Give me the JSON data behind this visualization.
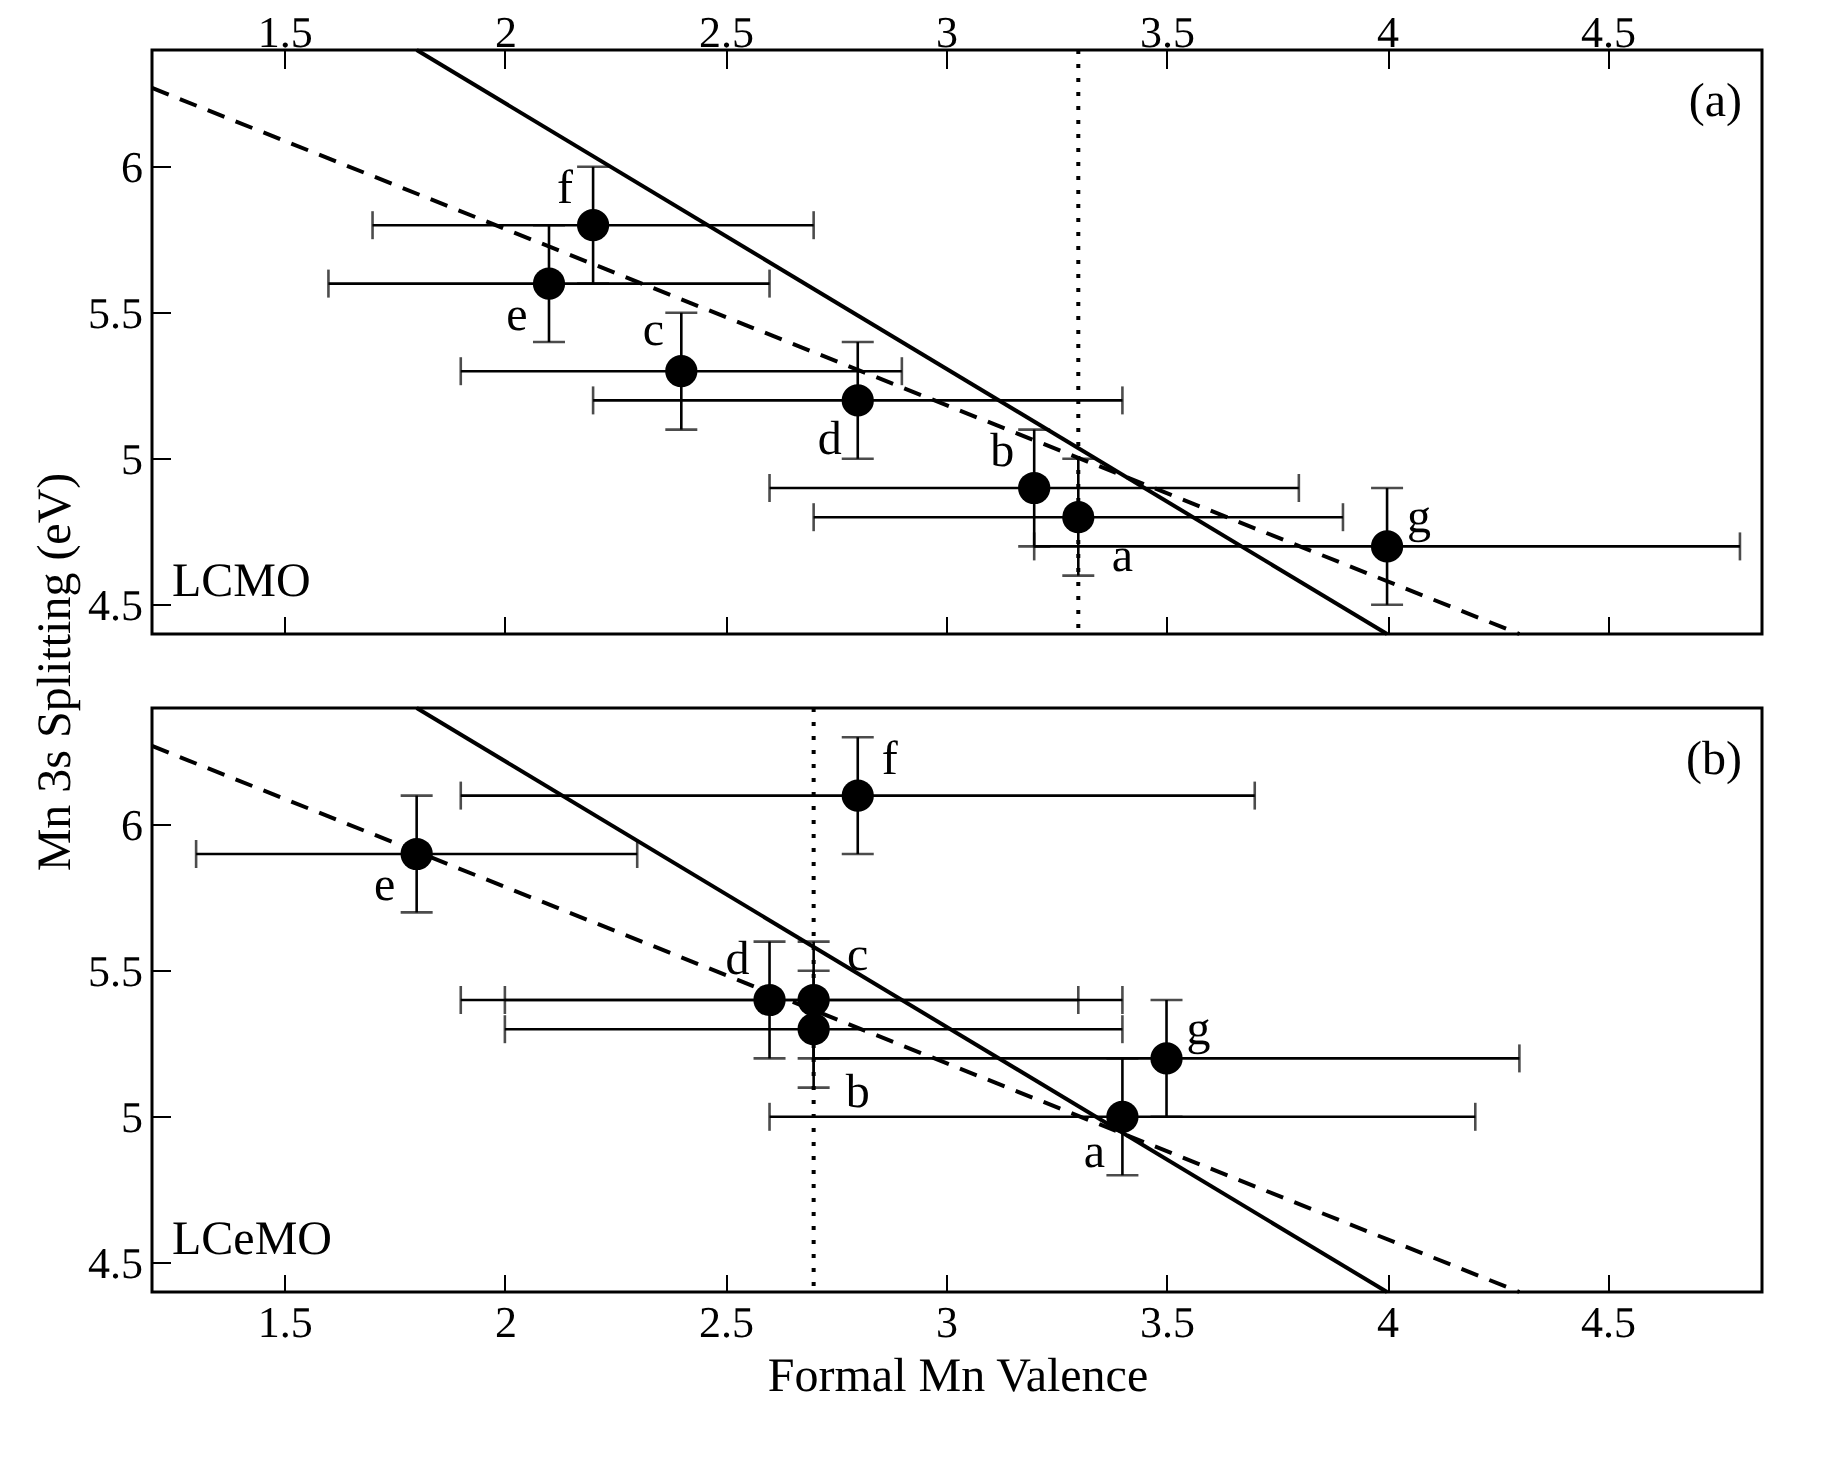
{
  "chart_data": [
    {
      "type": "scatter",
      "ylabel": "Mn 3s Splitting (eV)",
      "xlim": [
        1.2,
        4.85
      ],
      "ylim": [
        4.4,
        6.4
      ],
      "xticks": [
        1.5,
        2,
        2.5,
        3,
        3.5,
        4,
        4.5
      ],
      "yticks": [
        4.5,
        5,
        5.5,
        6
      ],
      "x2lim": [
        1.2,
        4.85
      ],
      "x2ticks": [
        1.5,
        2,
        2.5,
        3,
        3.5,
        4,
        4.5
      ],
      "tick_labels": "y",
      "grid": false,
      "series": [
        {
          "marker": "circle",
          "color": "#000000",
          "x": [
            2.2,
            2.1,
            2.4,
            2.8,
            3.2,
            3.3,
            4.0
          ],
          "values": [
            5.8,
            5.6,
            5.3,
            5.2,
            4.9,
            4.8,
            4.7
          ],
          "errors": [
            0.2,
            0.2,
            0.2,
            0.2,
            0.2,
            0.2,
            0.2
          ],
          "xerrors": [
            0.5,
            0.5,
            0.5,
            0.6,
            0.6,
            0.6,
            0.8
          ]
        },
        {
          "type": "line",
          "color": "#000000",
          "line_style": "solid",
          "x": [
            1.8,
            4.0
          ],
          "values": [
            6.4,
            4.4
          ]
        },
        {
          "type": "line",
          "color": "#000000",
          "line_style": "dashed",
          "x": [
            1.2,
            4.3
          ],
          "values": [
            6.27,
            4.4
          ]
        }
      ],
      "ref_lines": [
        {
          "axis": "x",
          "value": 3.3,
          "color": "#000000",
          "line_style": "dotted"
        }
      ],
      "annotations": [
        "(a)",
        "LCMO",
        {
          "text": "f",
          "x": 2.2,
          "y": 5.8
        },
        {
          "text": "e",
          "x": 2.1,
          "y": 5.6
        },
        {
          "text": "c",
          "x": 2.4,
          "y": 5.3
        },
        {
          "text": "d",
          "x": 2.8,
          "y": 5.2
        },
        {
          "text": "b",
          "x": 3.2,
          "y": 4.9
        },
        {
          "text": "a",
          "x": 3.3,
          "y": 4.8
        },
        {
          "text": "g",
          "x": 4.0,
          "y": 4.7
        }
      ]
    },
    {
      "type": "scatter",
      "xlabel": "Formal Mn Valence",
      "xlim": [
        1.2,
        4.85
      ],
      "ylim": [
        4.4,
        6.4
      ],
      "xticks": [
        1.5,
        2,
        2.5,
        3,
        3.5,
        4,
        4.5
      ],
      "yticks": [
        4.5,
        5,
        5.5,
        6
      ],
      "grid": false,
      "series": [
        {
          "marker": "circle",
          "color": "#000000",
          "x": [
            1.8,
            2.8,
            2.6,
            2.7,
            2.7,
            3.4,
            3.5
          ],
          "values": [
            5.9,
            6.1,
            5.4,
            5.4,
            5.3,
            5.0,
            5.2
          ],
          "errors": [
            0.2,
            0.2,
            0.2,
            0.2,
            0.2,
            0.2,
            0.2
          ],
          "xerrors": [
            0.5,
            0.9,
            0.7,
            0.7,
            0.7,
            0.8,
            0.8
          ]
        },
        {
          "type": "line",
          "color": "#000000",
          "line_style": "solid",
          "x": [
            1.8,
            4.0
          ],
          "values": [
            6.4,
            4.4
          ]
        },
        {
          "type": "line",
          "color": "#000000",
          "line_style": "dashed",
          "x": [
            1.2,
            4.3
          ],
          "values": [
            6.27,
            4.4
          ]
        }
      ],
      "ref_lines": [
        {
          "axis": "x",
          "value": 2.7,
          "color": "#000000",
          "line_style": "dotted"
        }
      ],
      "annotations": [
        "(b)",
        "LCeMO",
        {
          "text": "e",
          "x": 1.8,
          "y": 5.9
        },
        {
          "text": "f",
          "x": 2.8,
          "y": 6.1
        },
        {
          "text": "d",
          "x": 2.6,
          "y": 5.4
        },
        {
          "text": "c",
          "x": 2.7,
          "y": 5.4
        },
        {
          "text": "b",
          "x": 2.7,
          "y": 5.3
        },
        {
          "text": "a",
          "x": 3.4,
          "y": 5.0
        },
        {
          "text": "g",
          "x": 3.5,
          "y": 5.2
        }
      ]
    }
  ]
}
